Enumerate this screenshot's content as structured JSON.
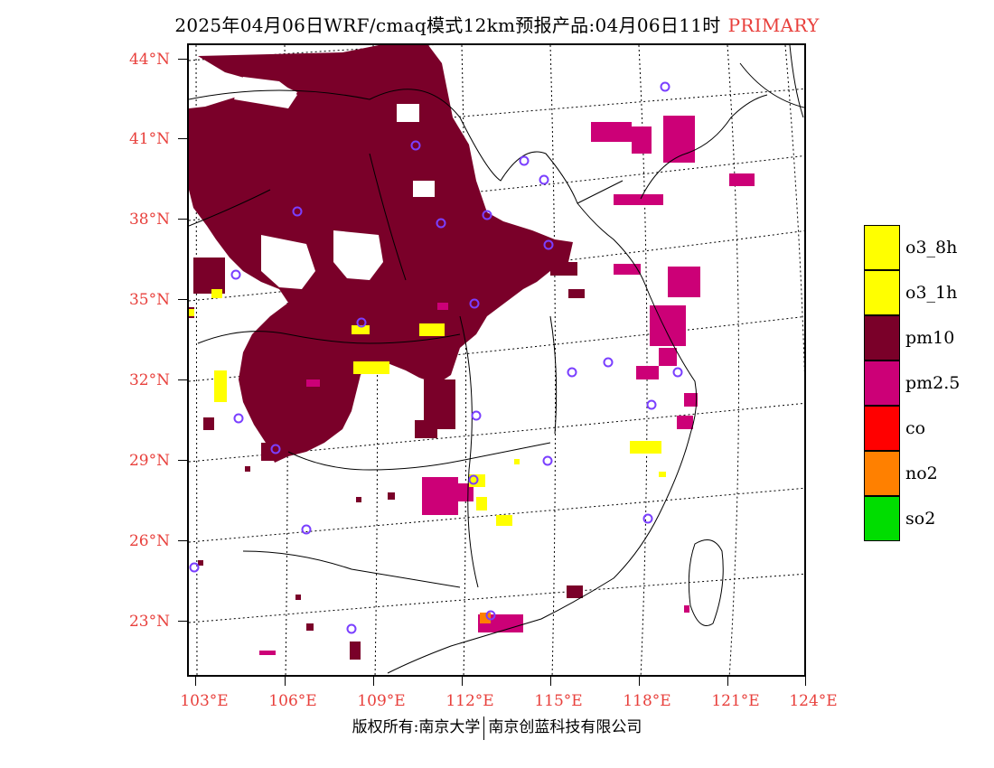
{
  "title": {
    "main": "2025年04月06日WRF/cmaq模式12km预报产品:04月06日11时",
    "tag": "PRIMARY"
  },
  "axes": {
    "lat_labels": [
      "44°N",
      "41°N",
      "38°N",
      "35°N",
      "32°N",
      "29°N",
      "26°N",
      "23°N"
    ],
    "lon_labels": [
      "103°E",
      "106°E",
      "109°E",
      "112°E",
      "115°E",
      "118°E",
      "121°E",
      "124°E"
    ]
  },
  "legend": [
    {
      "label": "o3_8h",
      "color": "#ffff00"
    },
    {
      "label": "o3_1h",
      "color": "#ffff00"
    },
    {
      "label": "pm10",
      "color": "#7a0029"
    },
    {
      "label": "pm2.5",
      "color": "#cc0077"
    },
    {
      "label": "co",
      "color": "#ff0000"
    },
    {
      "label": "no2",
      "color": "#ff8000"
    },
    {
      "label": "so2",
      "color": "#00dd00"
    }
  ],
  "footer": {
    "left": "版权所有:南京大学",
    "right": "南京创蓝科技有限公司"
  }
}
